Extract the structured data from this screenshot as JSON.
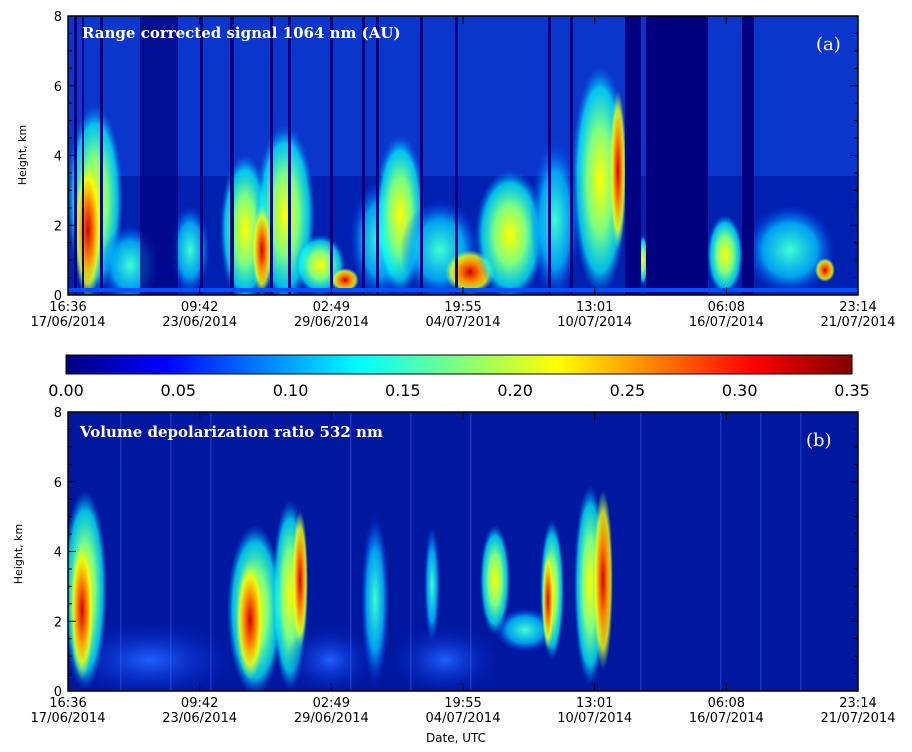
{
  "chart_data": [
    {
      "type": "heatmap",
      "panel_letter": "(a)",
      "title": "Range corrected signal 1064 nm (AU)",
      "ylabel": "Height, km",
      "xlabel": "",
      "ylim": [
        0,
        8
      ],
      "yticks": [
        0,
        2,
        4,
        6,
        8
      ],
      "xtick_labels": [
        {
          "time": "16:36",
          "date": "17/06/2014"
        },
        {
          "time": "09:42",
          "date": "23/06/2014"
        },
        {
          "time": "02:49",
          "date": "29/06/2014"
        },
        {
          "time": "19:55",
          "date": "04/07/2014"
        },
        {
          "time": "13:01",
          "date": "10/07/2014"
        },
        {
          "time": "06:08",
          "date": "16/07/2014"
        },
        {
          "time": "23:14",
          "date": "21/07/2014"
        }
      ],
      "colormap": "jet",
      "gap_periods": [
        "around 13/07/2014 – 15/07/2014"
      ]
    },
    {
      "type": "heatmap",
      "panel_letter": "(b)",
      "title": "Volume depolarization ratio 532 nm",
      "ylabel": "Height, km",
      "xlabel": "Date, UTC",
      "ylim": [
        0,
        8
      ],
      "yticks": [
        0,
        2,
        4,
        6,
        8
      ],
      "xtick_labels": [
        {
          "time": "16:36",
          "date": "17/06/2014"
        },
        {
          "time": "09:42",
          "date": "23/06/2014"
        },
        {
          "time": "02:49",
          "date": "29/06/2014"
        },
        {
          "time": "19:55",
          "date": "04/07/2014"
        },
        {
          "time": "13:01",
          "date": "10/07/2014"
        },
        {
          "time": "06:08",
          "date": "16/07/2014"
        },
        {
          "time": "23:14",
          "date": "21/07/2014"
        }
      ],
      "colormap": "jet",
      "color_range": [
        0.0,
        0.35
      ]
    }
  ],
  "colorbar": {
    "ticks": [
      "0.00",
      "0.05",
      "0.10",
      "0.15",
      "0.20",
      "0.25",
      "0.30",
      "0.35"
    ],
    "colors": [
      "#00007f",
      "#0000ff",
      "#007fff",
      "#00ffff",
      "#7fff7f",
      "#ffff00",
      "#ff7f00",
      "#ff0000",
      "#7f0000"
    ]
  },
  "style": {
    "background_dark_blue": "#00008f",
    "frame_color": "#000000"
  }
}
